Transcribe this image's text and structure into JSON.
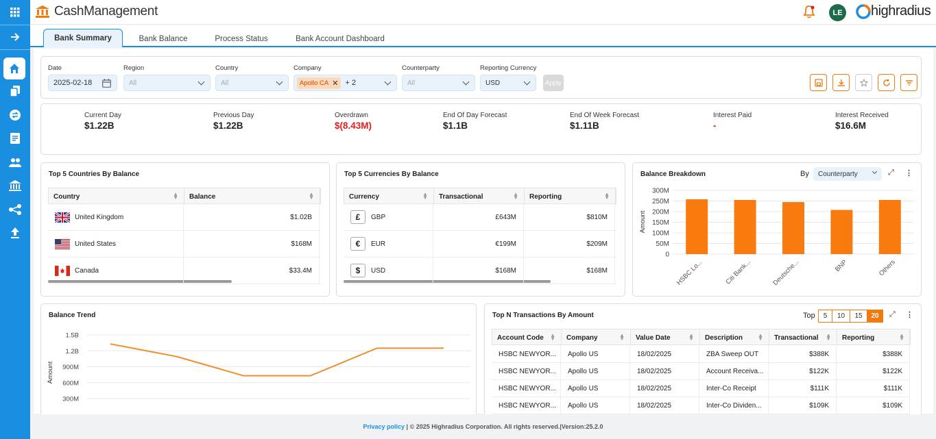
{
  "app": {
    "title": "CashManagement",
    "user_initials": "LE",
    "brand": "highradius"
  },
  "colors": {
    "accent": "#1a8fe0",
    "brand_orange": "#f07a10",
    "negative": "#e02020"
  },
  "sidebar": {
    "icons": [
      "grid-icon",
      "arrow-right-icon",
      "home-icon",
      "copy-icon",
      "transfer-icon",
      "document-icon",
      "people-icon",
      "bank-icon",
      "network-icon",
      "upload-icon"
    ]
  },
  "tabs": [
    "Bank Summary",
    "Bank Balance",
    "Process Status",
    "Bank Account Dashboard"
  ],
  "filters": {
    "date_label": "Date",
    "date_value": "2025-02-18",
    "region_label": "Region",
    "region_value": "All",
    "country_label": "Country",
    "country_value": "All",
    "company_label": "Company",
    "company_chip": "Apollo CA",
    "company_more": "+ 2",
    "counterparty_label": "Counterparty",
    "counterparty_value": "All",
    "currency_label": "Reporting Currency",
    "currency_value": "USD",
    "apply_label": "Apply"
  },
  "kpis": [
    {
      "label": "Current Day",
      "value": "$1.22B"
    },
    {
      "label": "Previous Day",
      "value": "$1.22B"
    },
    {
      "label": "Overdrawn",
      "value": "$(8.43M)"
    },
    {
      "label": "End Of Day Forecast",
      "value": "$1.1B"
    },
    {
      "label": "End Of Week Forecast",
      "value": "$1.11B"
    },
    {
      "label": "Interest Paid",
      "value": "-"
    },
    {
      "label": "Interest Received",
      "value": "$16.6M"
    }
  ],
  "countries": {
    "title": "Top 5 Countries By Balance",
    "headers": [
      "Country",
      "Balance"
    ],
    "rows": [
      {
        "name": "United Kingdom",
        "balance": "$1.02B",
        "flag": "uk"
      },
      {
        "name": "United States",
        "balance": "$168M",
        "flag": "us"
      },
      {
        "name": "Canada",
        "balance": "$33.4M",
        "flag": "ca"
      }
    ]
  },
  "currencies": {
    "title": "Top 5 Currencies By Balance",
    "headers": [
      "Currency",
      "Transactional",
      "Reporting"
    ],
    "rows": [
      {
        "symbol": "£",
        "code": "GBP",
        "transactional": "£643M",
        "reporting": "$810M"
      },
      {
        "symbol": "€",
        "code": "EUR",
        "transactional": "€199M",
        "reporting": "$209M"
      },
      {
        "symbol": "$",
        "code": "USD",
        "transactional": "$168M",
        "reporting": "$168M"
      }
    ]
  },
  "breakdown": {
    "title": "Balance Breakdown",
    "by_label": "By",
    "by_value": "Counterparty"
  },
  "trend": {
    "title": "Balance Trend"
  },
  "transactions": {
    "title": "Top N Transactions By Amount",
    "top_label": "Top",
    "top_options": [
      "5",
      "10",
      "15",
      "20"
    ],
    "selected": "20",
    "headers": [
      "Account Code",
      "Company",
      "Value Date",
      "Description",
      "Transactional",
      "Reporting"
    ],
    "rows": [
      [
        "HSBC NEWYOR...",
        "Apollo US",
        "18/02/2025",
        "ZBA Sweep OUT",
        "$388K",
        "$388K"
      ],
      [
        "HSBC NEWYOR...",
        "Apollo US",
        "18/02/2025",
        "Account Receiva...",
        "$122K",
        "$122K"
      ],
      [
        "HSBC NEWYOR...",
        "Apollo US",
        "18/02/2025",
        "Inter-Co Receipt",
        "$111K",
        "$111K"
      ],
      [
        "HSBC NEWYOR...",
        "Apollo US",
        "18/02/2025",
        "Inter-Co Dividen...",
        "$109K",
        "$109K"
      ]
    ]
  },
  "chart_data": [
    {
      "type": "bar",
      "title": "Balance Breakdown",
      "xlabel": "",
      "ylabel": "Amount",
      "categories": [
        "HSBC Lo...",
        "Citi Bank...",
        "Deutsche...",
        "BNP",
        "Others"
      ],
      "values": [
        258,
        255,
        245,
        208,
        255
      ],
      "y_ticks": [
        "300M",
        "250M",
        "200M",
        "150M",
        "100M",
        "50M",
        "0"
      ],
      "ylim": [
        0,
        300
      ],
      "color": "#f97a0e"
    },
    {
      "type": "line",
      "title": "Balance Trend",
      "ylabel": "Amount",
      "values": [
        1.33,
        1.09,
        0.73,
        0.73,
        1.25,
        1.25
      ],
      "y_ticks": [
        "1.5B",
        "1.2B",
        "900M",
        "600M",
        "300M"
      ],
      "ylim": [
        0.3,
        1.5
      ],
      "color": "#f28c28"
    }
  ],
  "footer": {
    "link": "Privacy policy",
    "text": " | © 2025 Highradius Corporation. All rights reserved.|Version:25.2.0"
  }
}
